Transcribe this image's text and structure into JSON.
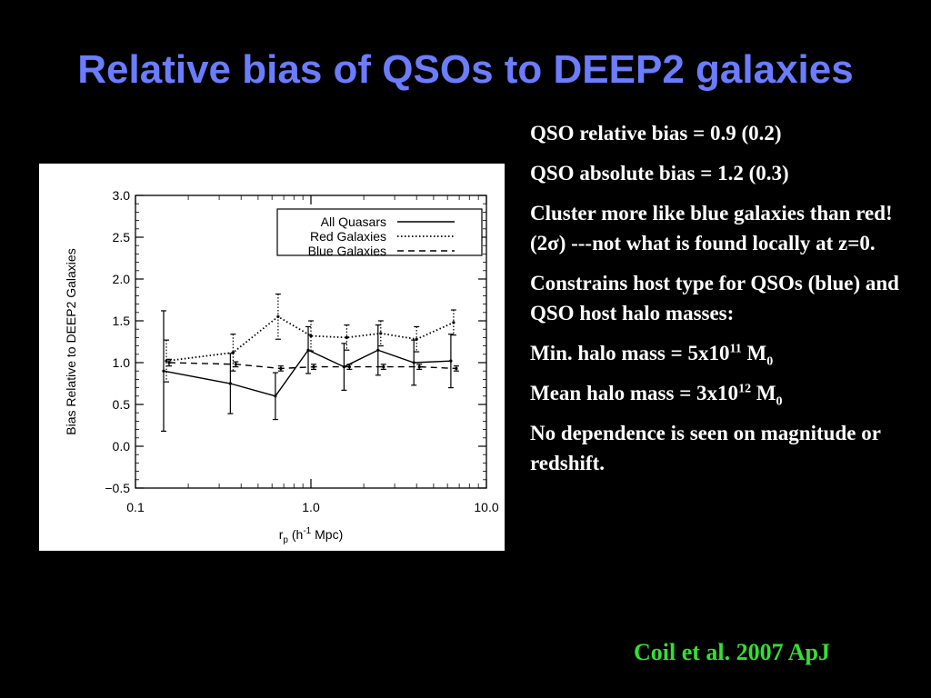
{
  "slide": {
    "title": "Relative bias of QSOs to DEEP2 galaxies",
    "title_color": "#6b7cff",
    "bullets": [
      {
        "text": "QSO relative bias = 0.9 (0.2)"
      },
      {
        "text": "QSO absolute bias = 1.2 (0.3)"
      },
      {
        "pre": "Cluster more like blue galaxies than red! (2",
        "sym": "σ",
        "post": ") ---not what is found locally at z=0."
      },
      {
        "text": "Constrains host type for QSOs (blue) and QSO host halo masses:"
      },
      {
        "pre": "Min. halo mass = 5x10",
        "sup": "11",
        "mid": " M",
        "sub": "0"
      },
      {
        "pre": "Mean halo mass = 3x10",
        "sup": "12",
        "mid": " M",
        "sub": "0"
      },
      {
        "text": "No dependence is seen on magnitude or redshift."
      }
    ],
    "citation": "Coil et al. 2007 ApJ",
    "citation_color": "#33e033"
  },
  "chart_data": {
    "type": "line",
    "xlabel_main": "r",
    "xlabel_sub": "p",
    "xlabel_rest": " (h",
    "xlabel_sup": "-1",
    "xlabel_end": " Mpc)",
    "ylabel": "Bias Relative to DEEP2 Galaxies",
    "xscale": "log",
    "xlim": [
      0.1,
      10.0
    ],
    "ylim": [
      -0.5,
      3.0
    ],
    "xticks": [
      0.1,
      1.0,
      10.0
    ],
    "xtick_labels": [
      "0.1",
      "1.0",
      "10.0"
    ],
    "yticks": [
      -0.5,
      0.0,
      0.5,
      1.0,
      1.5,
      2.0,
      2.5,
      3.0
    ],
    "ytick_labels": [
      "−0.5",
      "0.0",
      "0.5",
      "1.0",
      "1.5",
      "2.0",
      "2.5",
      "3.0"
    ],
    "legend_position": "top-right",
    "series": [
      {
        "name": "All Quasars",
        "style": "solid",
        "x": [
          0.15,
          0.36,
          0.65,
          1.0,
          1.6,
          2.5,
          4.0,
          6.5
        ],
        "y": [
          0.9,
          0.75,
          0.6,
          1.15,
          0.95,
          1.15,
          1.0,
          1.02
        ],
        "err": [
          0.72,
          0.36,
          0.28,
          0.28,
          0.28,
          0.3,
          0.27,
          0.32
        ]
      },
      {
        "name": "Red Galaxies",
        "style": "dotted",
        "x": [
          0.15,
          0.36,
          0.65,
          1.0,
          1.6,
          2.5,
          4.0,
          6.5
        ],
        "y": [
          1.02,
          1.12,
          1.55,
          1.32,
          1.3,
          1.35,
          1.28,
          1.48
        ],
        "err": [
          0.25,
          0.22,
          0.27,
          0.18,
          0.15,
          0.15,
          0.15,
          0.15
        ]
      },
      {
        "name": "Blue Galaxies",
        "style": "dashed",
        "x": [
          0.15,
          0.36,
          0.65,
          1.0,
          1.6,
          2.5,
          4.0,
          6.5
        ],
        "y": [
          1.0,
          0.98,
          0.93,
          0.95,
          0.95,
          0.95,
          0.95,
          0.93
        ],
        "err": [
          0.04,
          0.03,
          0.03,
          0.03,
          0.03,
          0.03,
          0.03,
          0.03
        ]
      }
    ]
  }
}
